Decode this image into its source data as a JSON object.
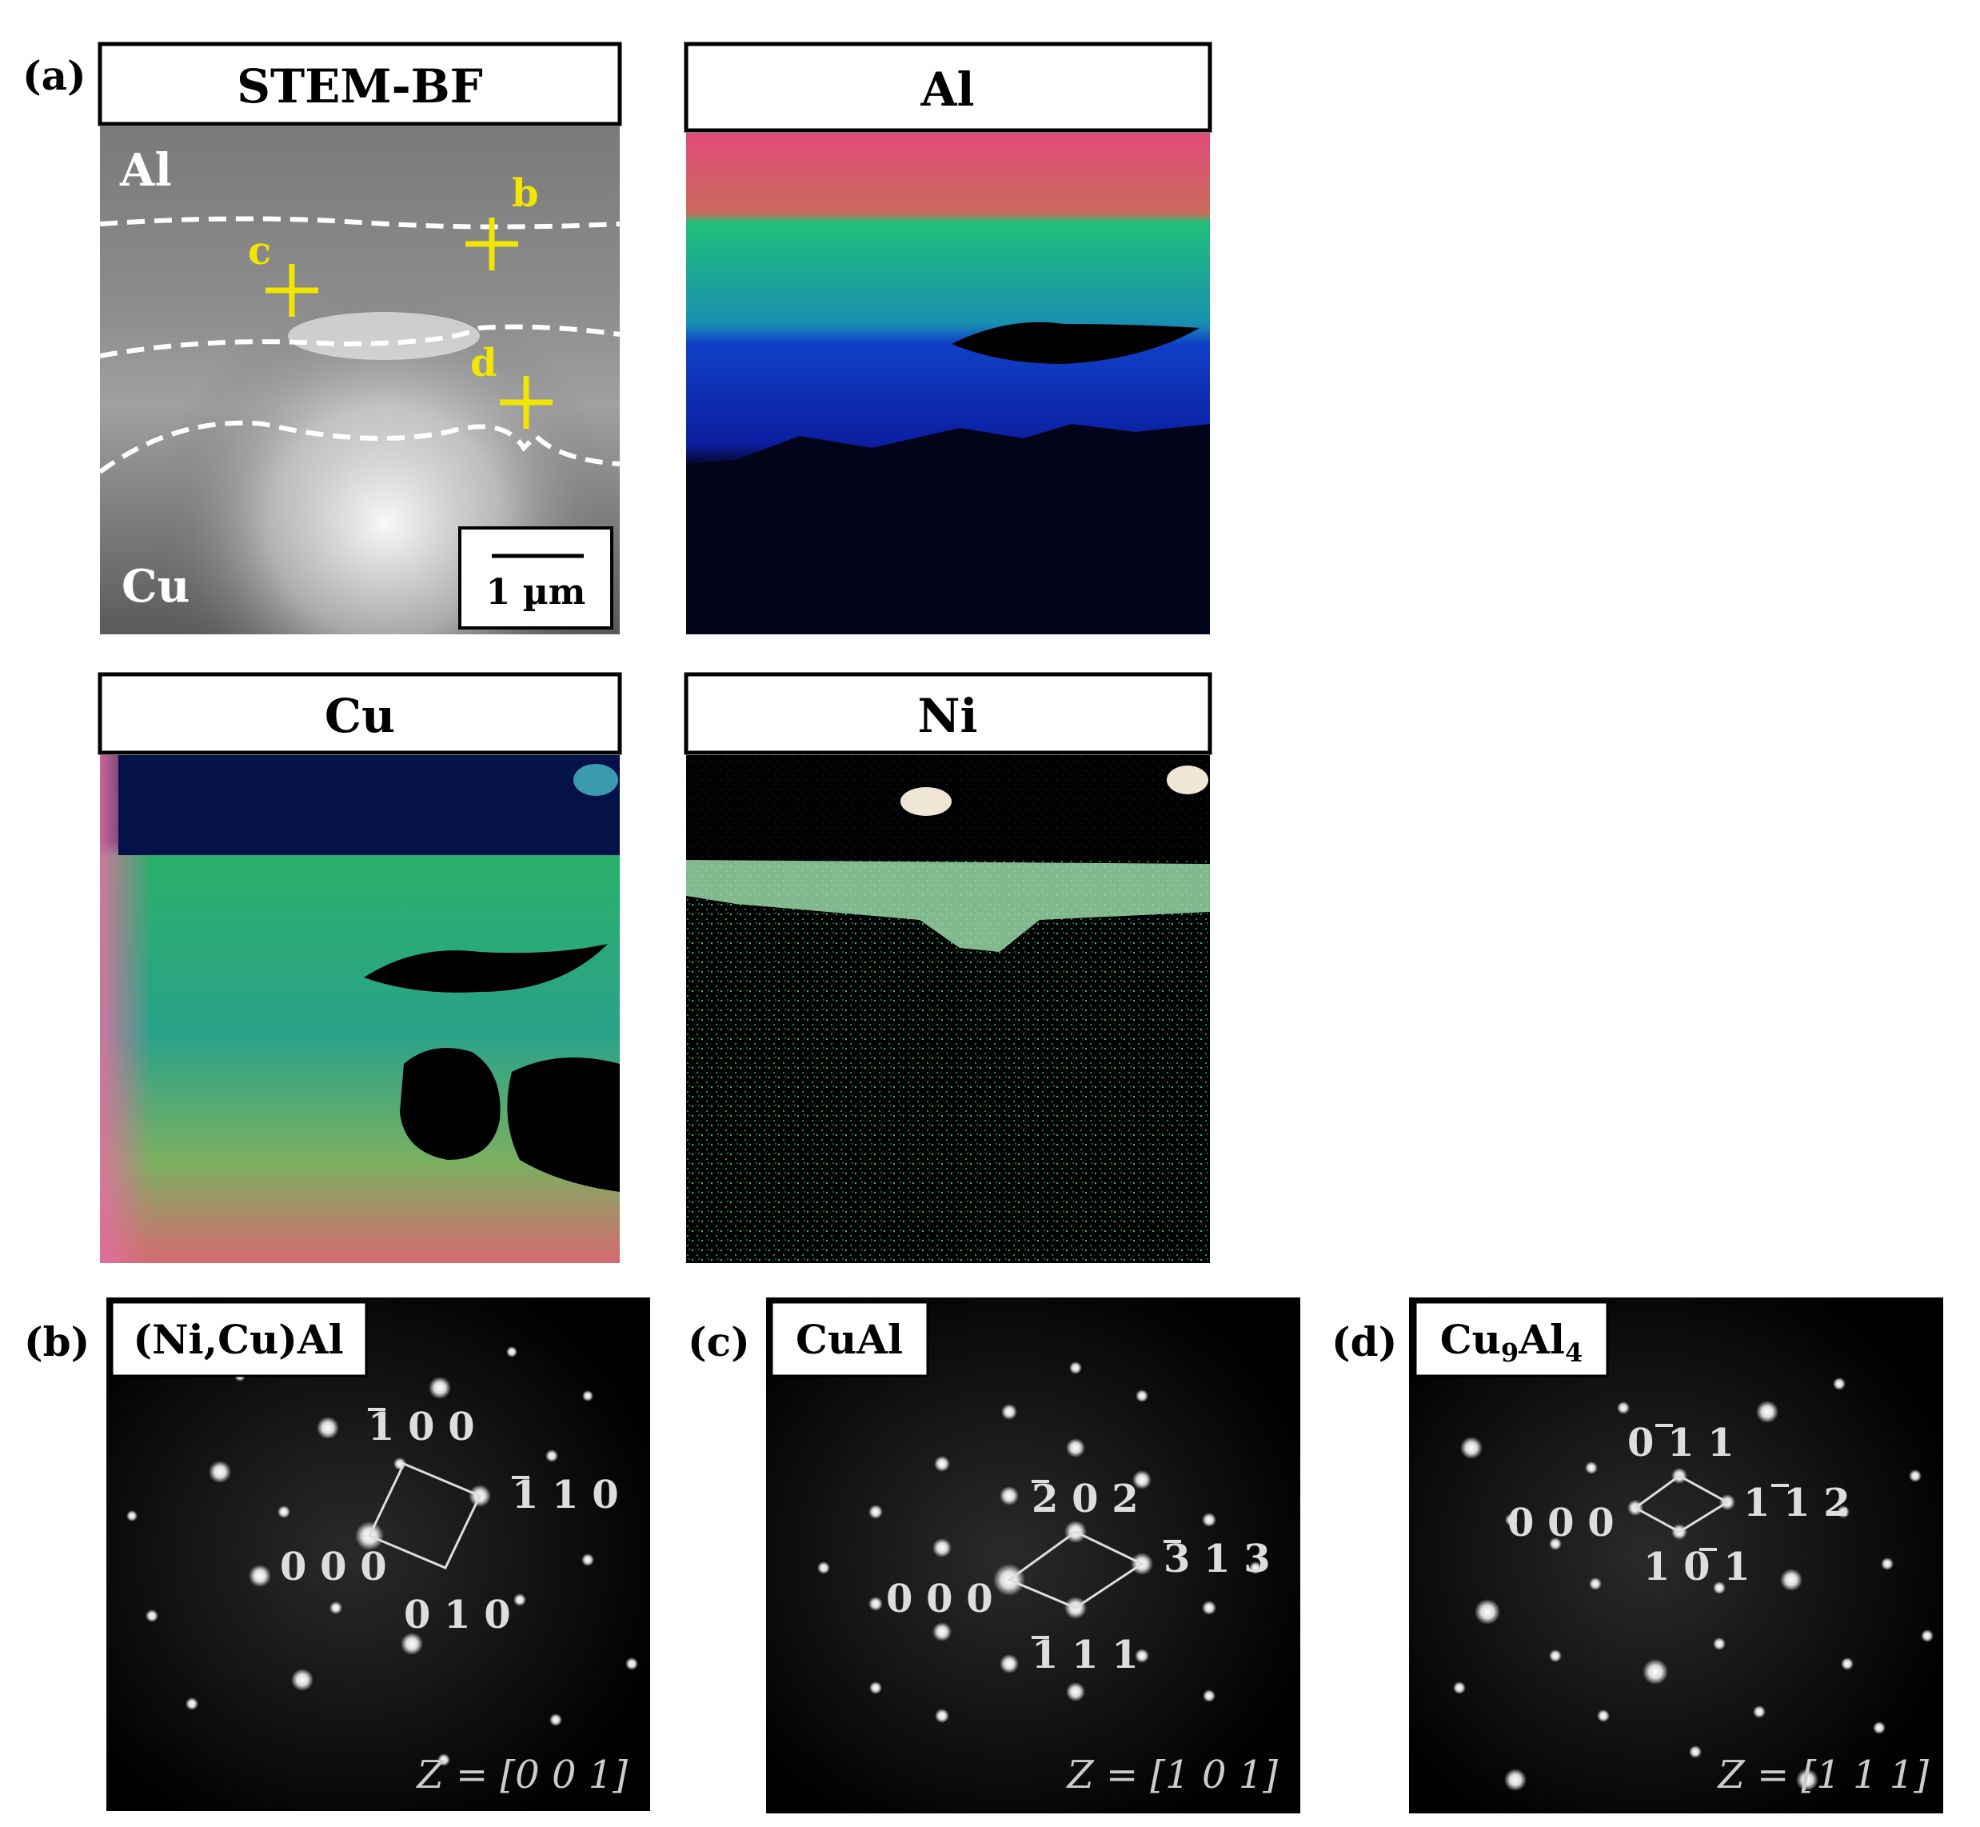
{
  "panel_a": {
    "letter": "(a)",
    "stem_bf": {
      "title": "STEM-BF",
      "region_top": "Al",
      "region_bottom": "Cu",
      "points": [
        {
          "label": "b"
        },
        {
          "label": "c"
        },
        {
          "label": "d"
        }
      ],
      "scale_bar": "1 µm"
    },
    "maps": [
      {
        "title": "Al"
      },
      {
        "title": "Cu"
      },
      {
        "title": "Ni"
      }
    ]
  },
  "panels_saed": [
    {
      "letter": "(b)",
      "phase_html": "(Ni,Cu)Al",
      "zone_axis": "Z = [0 0 1]",
      "spots": {
        "origin": "0 0 0",
        "a": "1 0 0",
        "a_bar": "1",
        "b": "1 1 0",
        "b_bar": "1",
        "c": "0 1 0"
      }
    },
    {
      "letter": "(c)",
      "phase_html": "CuAl",
      "zone_axis": "Z = [1 0 1]",
      "spots": {
        "origin": "0 0 0",
        "a": "2 0 2",
        "a_bar": "2",
        "b": "3 1 3",
        "b_bar": "3",
        "c": "1 1 1",
        "c_bar": "1"
      }
    },
    {
      "letter": "(d)",
      "phase_base": "Cu",
      "phase_sub1": "9",
      "phase_mid": "Al",
      "phase_sub2": "4",
      "zone_axis": "Z = [1 1 1]",
      "spots": {
        "origin": "0 0 0",
        "a": "0 1 1",
        "a_bar": "1",
        "b": "1 1 2",
        "b_bar": "1",
        "c": "1 0 1",
        "c_bar": "1"
      }
    }
  ],
  "colors": {
    "marker_yellow": "#f2e600",
    "dashed_line": "#ffffff",
    "map_black": "#000000",
    "frame": "#000000"
  }
}
